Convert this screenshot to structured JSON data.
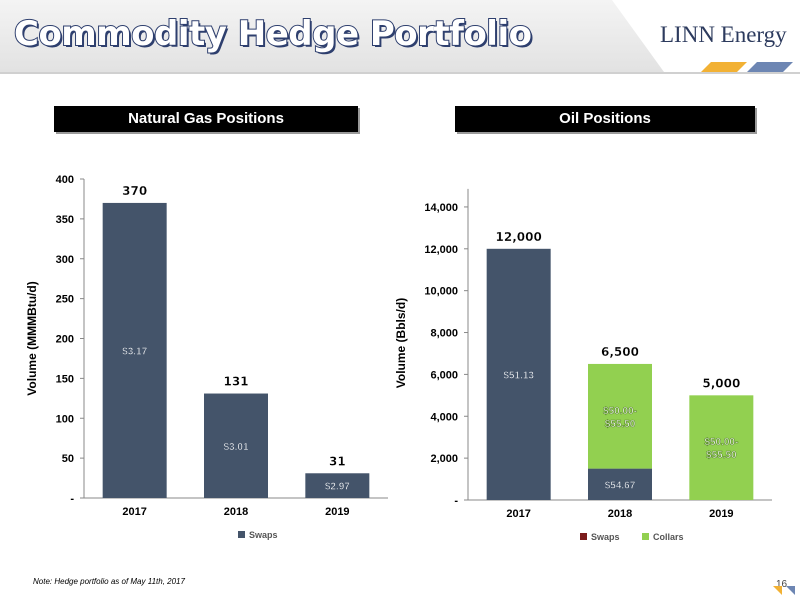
{
  "header": {
    "title": "Commodity Hedge Portfolio",
    "logo": "LINN Energy"
  },
  "colors": {
    "navy": "#44546a",
    "green": "#92d050",
    "swaps_legend_oil": "#7b1c1c",
    "gold": "#f2b134",
    "steel_blue": "#6d86b3"
  },
  "panels": {
    "gas_title": "Natural Gas Positions",
    "oil_title": "Oil Positions"
  },
  "chart_data": [
    {
      "type": "bar",
      "title": "Natural Gas Positions",
      "ylabel": "Volume (MMMBtu/d)",
      "categories": [
        "2017",
        "2018",
        "2019"
      ],
      "series": [
        {
          "name": "Swaps",
          "values": [
            370,
            131,
            31
          ],
          "bar_labels": [
            "$3.17",
            "$3.01",
            "$2.97"
          ]
        }
      ],
      "total_labels": [
        "370",
        "131",
        "31"
      ],
      "ylim": [
        0,
        400
      ],
      "yticks": [
        0,
        50,
        100,
        150,
        200,
        250,
        300,
        350,
        400
      ],
      "ytick_labels": [
        "-",
        "50",
        "100",
        "150",
        "200",
        "250",
        "300",
        "350",
        "400"
      ],
      "legend": "bottom"
    },
    {
      "type": "bar",
      "stacked": true,
      "title": "Oil Positions",
      "ylabel": "Volume (Bbls/d)",
      "categories": [
        "2017",
        "2018",
        "2019"
      ],
      "series": [
        {
          "name": "Swaps",
          "values": [
            12000,
            1500,
            0
          ],
          "bar_labels": [
            "$51.13",
            "$54.67",
            ""
          ]
        },
        {
          "name": "Collars",
          "values": [
            0,
            5000,
            5000
          ],
          "bar_labels": [
            "",
            "$50.00-\n$55.50",
            "$50.00-\n$55.50"
          ]
        }
      ],
      "total_labels": [
        "12,000",
        "6,500",
        "5,000"
      ],
      "ylim": [
        0,
        15000
      ],
      "yticks": [
        0,
        2000,
        4000,
        6000,
        8000,
        10000,
        12000,
        14000
      ],
      "ytick_labels": [
        "-",
        "2,000",
        "4,000",
        "6,000",
        "8,000",
        "10,000",
        "12,000",
        "14,000"
      ],
      "legend": "bottom"
    }
  ],
  "footer": {
    "note": "Note: Hedge portfolio as of May 11th, 2017",
    "page_number": "16"
  }
}
